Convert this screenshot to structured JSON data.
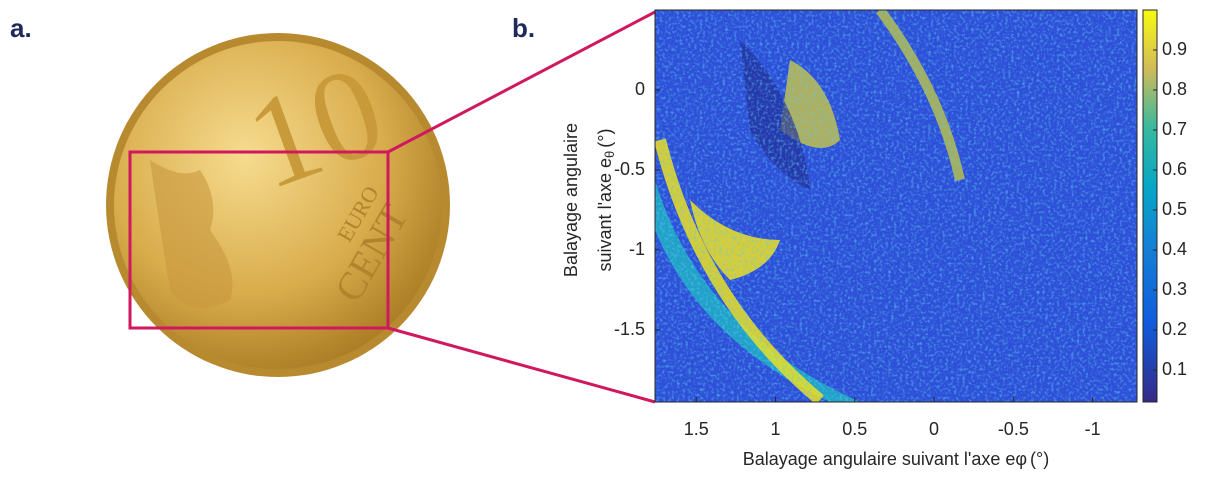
{
  "panels": {
    "a": "a.",
    "b": "b."
  },
  "coin": {
    "denomination": "10",
    "word1": "EURO",
    "word2": "CENT"
  },
  "chart_data": {
    "type": "heatmap",
    "xlabel": {
      "text": "Balayage angulaire suivant l'axe e",
      "symbol": "φ",
      "unit": "(°)"
    },
    "ylabel": {
      "line1": "Balayage angulaire",
      "line2": "suivant l'axe e",
      "symbol": "θ",
      "unit": "(°)"
    },
    "xlim": [
      1.76,
      -1.28
    ],
    "xticks": [
      1.5,
      1,
      0.5,
      0,
      -0.5,
      -1
    ],
    "ylim": [
      -1.95,
      0.5
    ],
    "yticks": [
      0,
      -0.5,
      -1,
      -1.5
    ],
    "colorbar": {
      "lim": [
        0.02,
        1
      ],
      "ticks": [
        0.9,
        0.8,
        0.7,
        0.6,
        0.5,
        0.4,
        0.3,
        0.2,
        0.1
      ]
    }
  }
}
